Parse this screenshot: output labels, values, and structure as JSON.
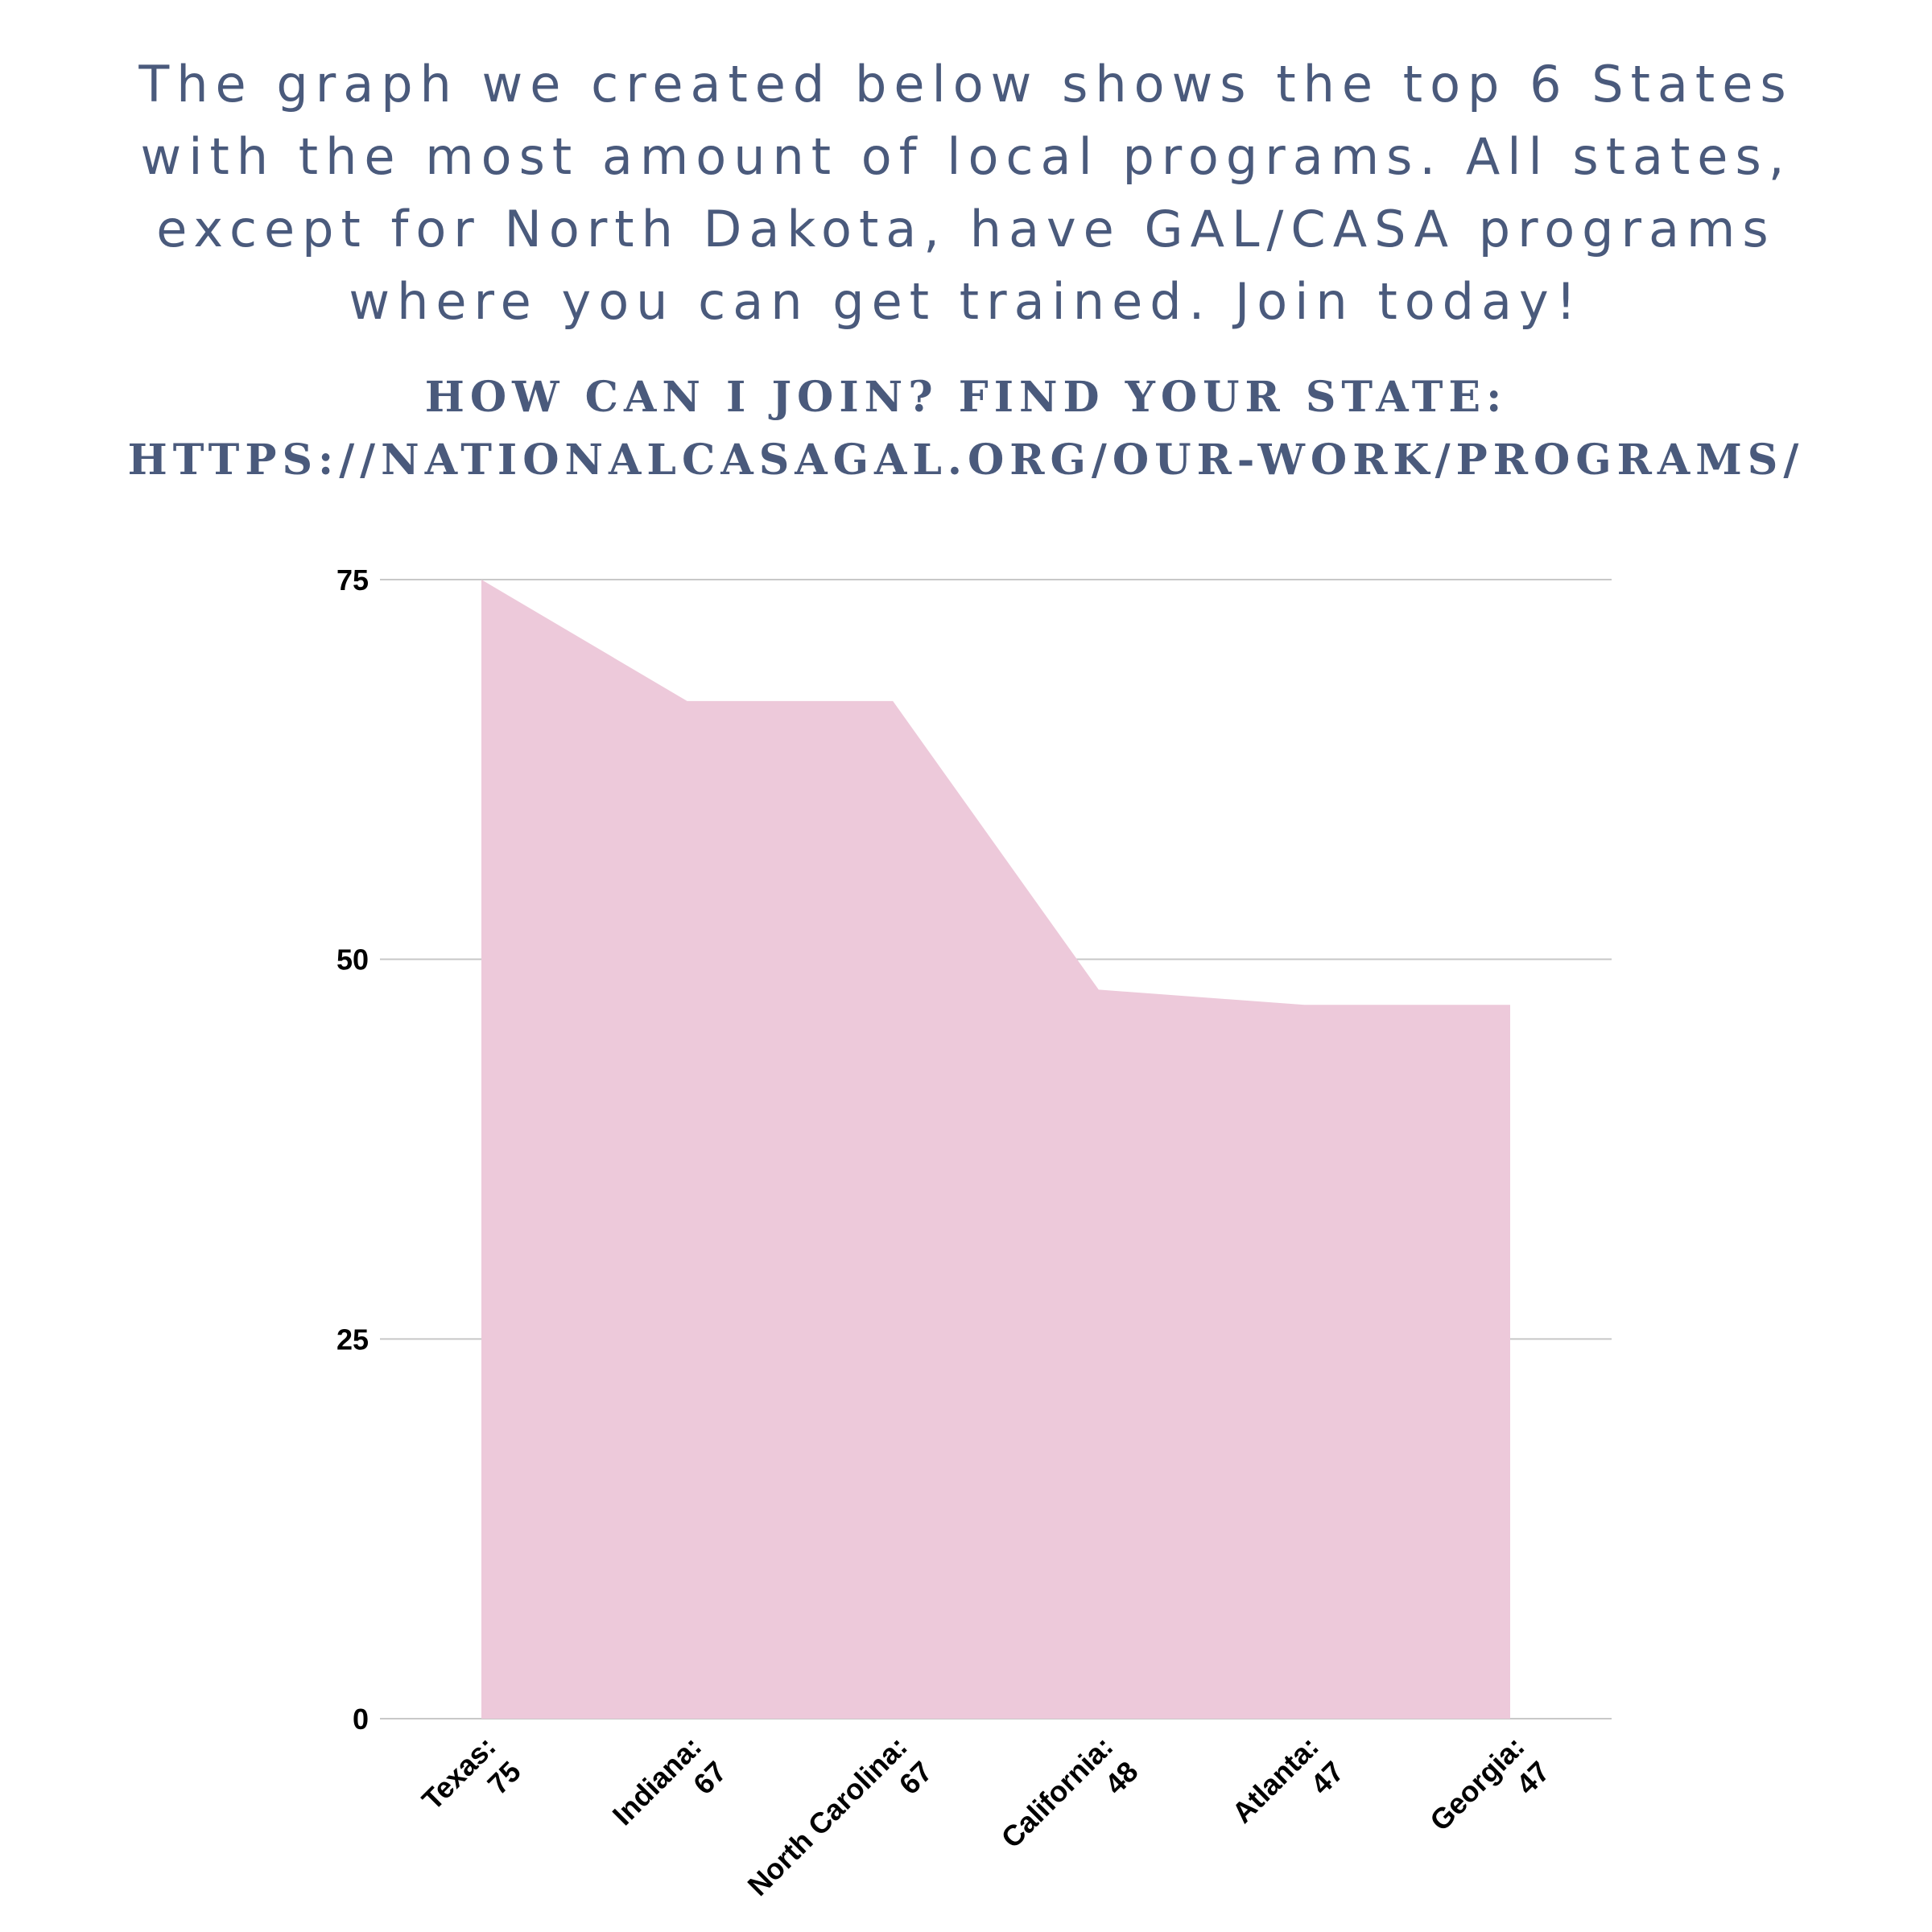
{
  "intro_text": "The graph we created below shows the top 6 States with the most amount of local programs. All states, except for North Dakota, have GAL/CASA programs where you can get trained. Join today!",
  "join_line1": "HOW CAN I JOIN? FIND YOUR STATE:",
  "join_line2": "HTTPS://NATIONALCASAGAL.ORG/OUR-WORK/PROGRAMS/",
  "colors": {
    "text": "#4a5a7c",
    "area": "#edc9da",
    "grid": "#c8c8c8"
  },
  "chart_data": {
    "type": "area",
    "categories": [
      [
        "Texas:",
        "75"
      ],
      [
        "Indiana:",
        "67"
      ],
      [
        "North Carolina:",
        "67"
      ],
      [
        "California:",
        "48"
      ],
      [
        "Atlanta:",
        "47"
      ],
      [
        "Georgia:",
        "47"
      ]
    ],
    "values": [
      75,
      67,
      67,
      48,
      47,
      47
    ],
    "ylim": [
      0,
      75
    ],
    "yticks": [
      "0",
      "25",
      "50",
      "75"
    ],
    "ytick_values": [
      0,
      25,
      50,
      75
    ],
    "grid": true
  }
}
